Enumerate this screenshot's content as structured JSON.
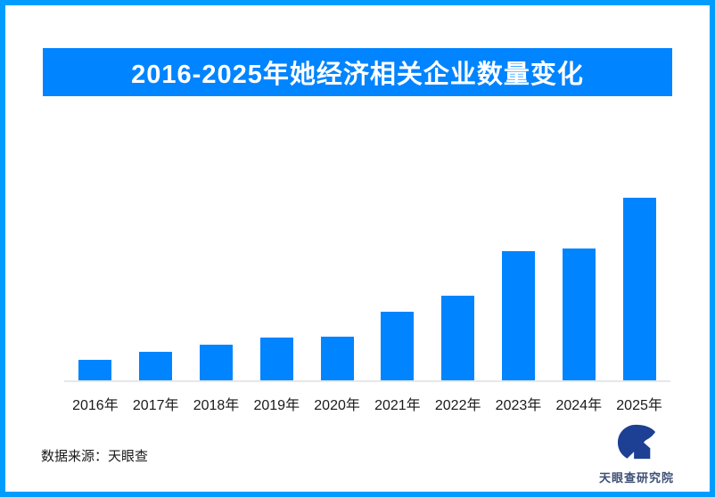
{
  "page": {
    "background": "#ffffff",
    "border_color": "#009dff"
  },
  "banner": {
    "title": "2016-2025年她经济相关企业数量变化",
    "background": "#0084ff",
    "text_color": "#ffffff"
  },
  "chart_data": {
    "type": "bar",
    "title": "2016-2025年她经济相关企业数量变化",
    "categories": [
      "2016年",
      "2017年",
      "2018年",
      "2019年",
      "2020年",
      "2021年",
      "2022年",
      "2023年",
      "2024年",
      "2025年"
    ],
    "values": [
      24,
      33,
      41,
      49,
      50,
      78,
      96,
      146,
      149,
      206
    ],
    "values_unit": "relative bar height in px — chart displays no y-axis ticks or data labels",
    "relative_to_max_pct": [
      11.7,
      16.0,
      19.9,
      23.8,
      24.3,
      37.9,
      46.6,
      70.9,
      72.3,
      100
    ],
    "bar_color": "#0084ff",
    "axis_line_color": "#e7e7ea",
    "xlabel": "",
    "ylabel": "",
    "ylim": [
      0,
      206
    ],
    "grid": false,
    "legend": false
  },
  "footer": {
    "source_label": "数据来源：天眼查",
    "logo_text": "天眼查研究院",
    "logo_color": "#1d3f94",
    "logo_text_color": "#3d4f76"
  }
}
